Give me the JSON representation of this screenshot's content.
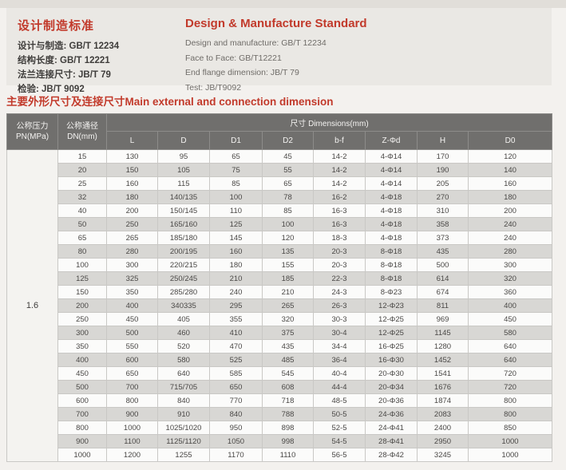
{
  "standards": {
    "zh": {
      "title": "设计制造标准",
      "lines": [
        "设计与制造: GB/T 12234",
        "结构长度: GB/T 12221",
        "法兰连接尺寸: JB/T 79",
        "检验: JB/T 9092"
      ]
    },
    "en": {
      "title": "Design & Manufacture Standard",
      "lines": [
        "Design and manufacture:  GB/T 12234",
        "Face to Face:  GB/T12221",
        "End flange dimension:  JB/T 79",
        "Test:  JB/T9092"
      ]
    }
  },
  "section_title": "主要外形尺寸及连接尺寸Main external and connection dimension",
  "table": {
    "pn_header": [
      "公称压力",
      "PN(MPa)"
    ],
    "dn_header": [
      "公称通径",
      "DN(mm)"
    ],
    "dims_header": "尺寸 Dimensions(mm)",
    "dim_columns": [
      "L",
      "D",
      "D1",
      "D2",
      "b-f",
      "Z-Φd",
      "H",
      "D0"
    ],
    "pn_value": "1.6",
    "rows": [
      [
        "15",
        "130",
        "95",
        "65",
        "45",
        "14-2",
        "4-Φ14",
        "170",
        "120"
      ],
      [
        "20",
        "150",
        "105",
        "75",
        "55",
        "14-2",
        "4-Φ14",
        "190",
        "140"
      ],
      [
        "25",
        "160",
        "115",
        "85",
        "65",
        "14-2",
        "4-Φ14",
        "205",
        "160"
      ],
      [
        "32",
        "180",
        "140/135",
        "100",
        "78",
        "16-2",
        "4-Φ18",
        "270",
        "180"
      ],
      [
        "40",
        "200",
        "150/145",
        "110",
        "85",
        "16-3",
        "4-Φ18",
        "310",
        "200"
      ],
      [
        "50",
        "250",
        "165/160",
        "125",
        "100",
        "16-3",
        "4-Φ18",
        "358",
        "240"
      ],
      [
        "65",
        "265",
        "185/180",
        "145",
        "120",
        "18-3",
        "4-Φ18",
        "373",
        "240"
      ],
      [
        "80",
        "280",
        "200/195",
        "160",
        "135",
        "20-3",
        "8-Φ18",
        "435",
        "280"
      ],
      [
        "100",
        "300",
        "220/215",
        "180",
        "155",
        "20-3",
        "8-Φ18",
        "500",
        "300"
      ],
      [
        "125",
        "325",
        "250/245",
        "210",
        "185",
        "22-3",
        "8-Φ18",
        "614",
        "320"
      ],
      [
        "150",
        "350",
        "285/280",
        "240",
        "210",
        "24-3",
        "8-Φ23",
        "674",
        "360"
      ],
      [
        "200",
        "400",
        "340335",
        "295",
        "265",
        "26-3",
        "12-Φ23",
        "811",
        "400"
      ],
      [
        "250",
        "450",
        "405",
        "355",
        "320",
        "30-3",
        "12-Φ25",
        "969",
        "450"
      ],
      [
        "300",
        "500",
        "460",
        "410",
        "375",
        "30-4",
        "12-Φ25",
        "1145",
        "580"
      ],
      [
        "350",
        "550",
        "520",
        "470",
        "435",
        "34-4",
        "16-Φ25",
        "1280",
        "640"
      ],
      [
        "400",
        "600",
        "580",
        "525",
        "485",
        "36-4",
        "16-Φ30",
        "1452",
        "640"
      ],
      [
        "450",
        "650",
        "640",
        "585",
        "545",
        "40-4",
        "20-Φ30",
        "1541",
        "720"
      ],
      [
        "500",
        "700",
        "715/705",
        "650",
        "608",
        "44-4",
        "20-Φ34",
        "1676",
        "720"
      ],
      [
        "600",
        "800",
        "840",
        "770",
        "718",
        "48-5",
        "20-Φ36",
        "1874",
        "800"
      ],
      [
        "700",
        "900",
        "910",
        "840",
        "788",
        "50-5",
        "24-Φ36",
        "2083",
        "800"
      ],
      [
        "800",
        "1000",
        "1025/1020",
        "950",
        "898",
        "52-5",
        "24-Φ41",
        "2400",
        "850"
      ],
      [
        "900",
        "1100",
        "1125/1120",
        "1050",
        "998",
        "54-5",
        "28-Φ41",
        "2950",
        "1000"
      ],
      [
        "1000",
        "1200",
        "1255",
        "1170",
        "1110",
        "56-5",
        "28-Φ42",
        "3245",
        "1000"
      ]
    ]
  },
  "colors": {
    "accent_red": "#c23a2b",
    "table_header_bg": "#706f6d",
    "row_alt_gray": "#d8d7d4",
    "page_bg": "#f3f1ee",
    "panel_bg": "#eae8e4"
  }
}
